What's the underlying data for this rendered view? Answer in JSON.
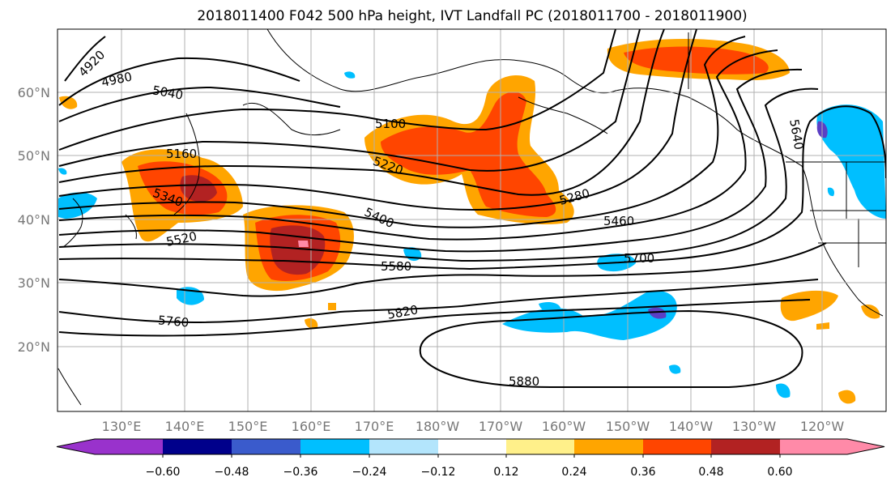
{
  "title": "2018011400 F042 500 hPa height, IVT Landfall PC (2018011700 - 2018011900)",
  "map": {
    "lon_labels": [
      "130°E",
      "140°E",
      "150°E",
      "160°E",
      "170°E",
      "180°W",
      "170°W",
      "160°W",
      "150°W",
      "140°W",
      "130°W",
      "120°W"
    ],
    "lat_labels": [
      "60°N",
      "50°N",
      "40°N",
      "30°N",
      "20°N"
    ],
    "contour_labels": [
      "4920",
      "4980",
      "5040",
      "5100",
      "5160",
      "5220",
      "5280",
      "5340",
      "5400",
      "5460",
      "5520",
      "5580",
      "5700",
      "5640",
      "5760",
      "5820",
      "5880"
    ],
    "field_colors": {
      "neg_dark": "#5b3fc4",
      "neg": "#00bfff",
      "neg_light": "#b3e5fc",
      "pos_light": "#fff08a",
      "pos": "#ffa500",
      "pos_mid": "#ff4500",
      "pos_dark": "#b22222",
      "pos_max": "#ff8aa8"
    }
  },
  "colorbar": {
    "colors": [
      "#9932cc",
      "#00008b",
      "#3a5bcc",
      "#00bfff",
      "#b3e5fc",
      "#ffffff",
      "#fff08a",
      "#ffa500",
      "#ff4500",
      "#b22222",
      "#ff8aa8"
    ],
    "tick_labels": [
      "−0.60",
      "−0.48",
      "−0.36",
      "−0.24",
      "−0.12",
      "0.12",
      "0.24",
      "0.36",
      "0.48",
      "0.60"
    ]
  }
}
